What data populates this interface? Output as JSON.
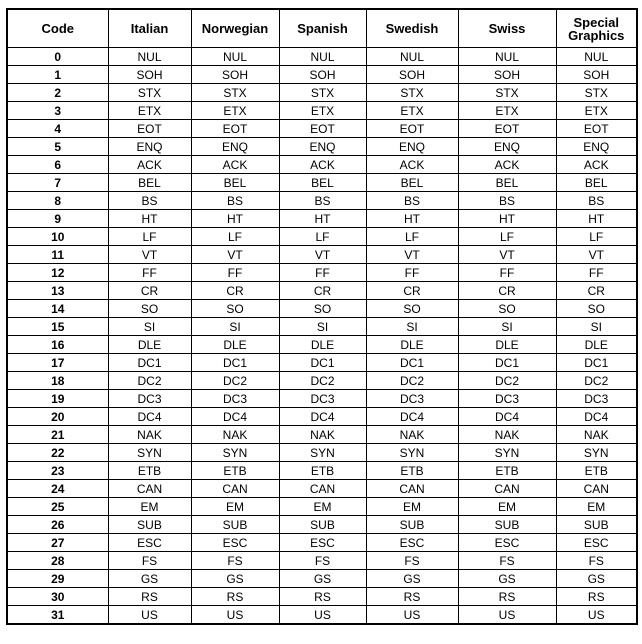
{
  "headers": [
    "Code",
    "Italian",
    "Norwegian",
    "Spanish",
    "Swedish",
    "Swiss",
    "Special Graphics"
  ],
  "rows": [
    [
      "0",
      "NUL"
    ],
    [
      "1",
      "SOH"
    ],
    [
      "2",
      "STX"
    ],
    [
      "3",
      "ETX"
    ],
    [
      "4",
      "EOT"
    ],
    [
      "5",
      "ENQ"
    ],
    [
      "6",
      "ACK"
    ],
    [
      "7",
      "BEL"
    ],
    [
      "8",
      "BS"
    ],
    [
      "9",
      "HT"
    ],
    [
      "10",
      "LF"
    ],
    [
      "11",
      "VT"
    ],
    [
      "12",
      "FF"
    ],
    [
      "13",
      "CR"
    ],
    [
      "14",
      "SO"
    ],
    [
      "15",
      "SI"
    ],
    [
      "16",
      "DLE"
    ],
    [
      "17",
      "DC1"
    ],
    [
      "18",
      "DC2"
    ],
    [
      "19",
      "DC3"
    ],
    [
      "20",
      "DC4"
    ],
    [
      "21",
      "NAK"
    ],
    [
      "22",
      "SYN"
    ],
    [
      "23",
      "ETB"
    ],
    [
      "24",
      "CAN"
    ],
    [
      "25",
      "EM"
    ],
    [
      "26",
      "SUB"
    ],
    [
      "27",
      "ESC"
    ],
    [
      "28",
      "FS"
    ],
    [
      "29",
      "GS"
    ],
    [
      "30",
      "RS"
    ],
    [
      "31",
      "US"
    ]
  ]
}
